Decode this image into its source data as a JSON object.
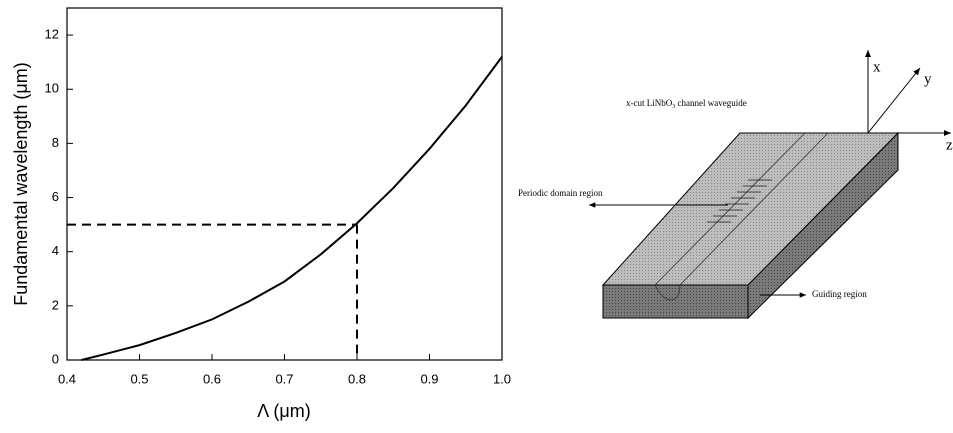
{
  "chart_data": {
    "type": "line",
    "x": [
      0.42,
      0.45,
      0.5,
      0.55,
      0.6,
      0.65,
      0.7,
      0.75,
      0.8,
      0.85,
      0.9,
      0.95,
      1.0
    ],
    "values": [
      0,
      0.2,
      0.55,
      1.0,
      1.5,
      2.15,
      2.9,
      3.9,
      5.05,
      6.35,
      7.8,
      9.4,
      11.2
    ],
    "color": "#000000",
    "xlabel": "Λ (μm)",
    "ylabel": "Fundamental  wavelength (μm)",
    "xlim": [
      0.4,
      1.0
    ],
    "ylim": [
      0,
      13
    ],
    "xticks": [
      0.4,
      0.5,
      0.6,
      0.7,
      0.8,
      0.9,
      {
        "value": 1.0,
        "label": "1.0"
      }
    ],
    "yticks": [
      0,
      2,
      4,
      6,
      8,
      10,
      12
    ],
    "guide": {
      "x": 0.8,
      "y": 5
    }
  },
  "diagram": {
    "title": [
      "x-cut LiNbO",
      "3",
      " channel waveguide"
    ],
    "periodic_label": "Periodic domain region",
    "guiding_label": "Guiding region",
    "axes": {
      "x": "x",
      "y": "y",
      "z": "z"
    }
  }
}
